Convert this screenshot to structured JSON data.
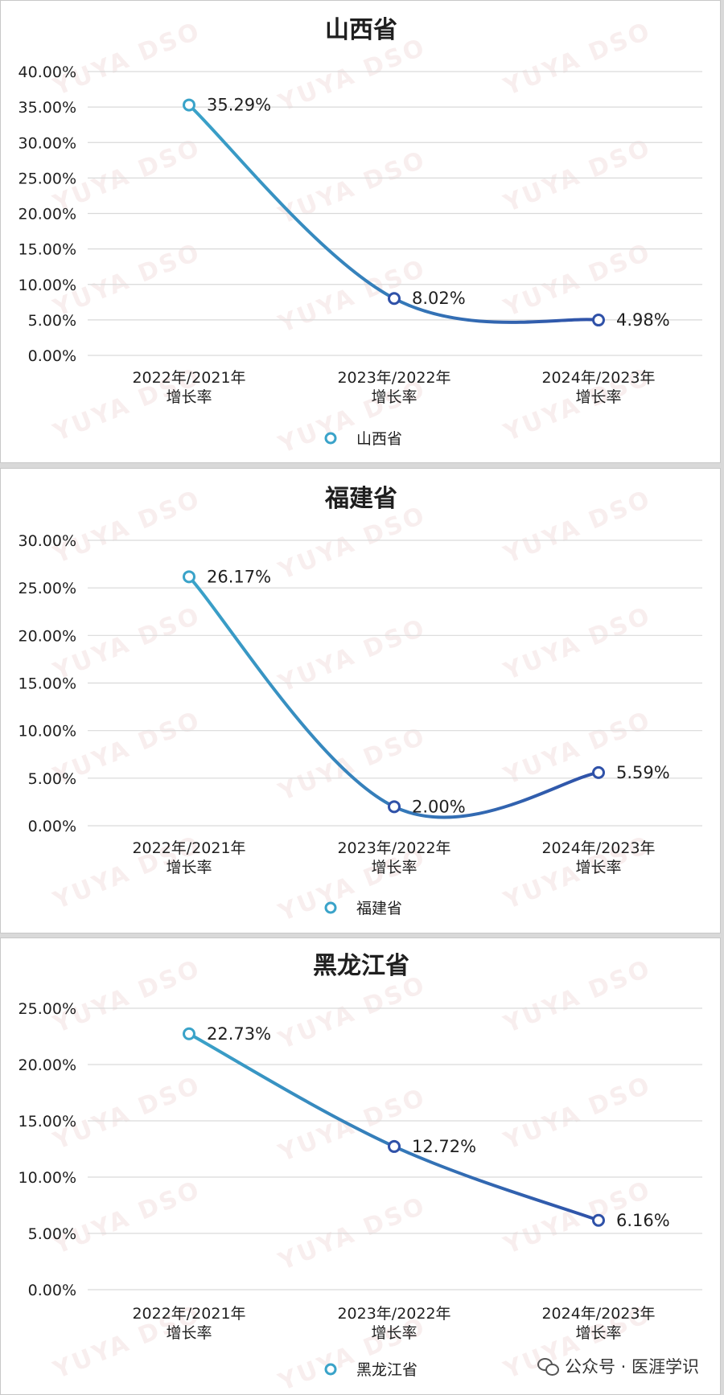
{
  "watermark": "YUYA DSO",
  "footer": {
    "label": "公众号 · 医涯学识",
    "icon": "wechat-icon"
  },
  "colors": {
    "line_start": "#3aa3c9",
    "line_end": "#2f51a8",
    "marker_fill": "#ffffff",
    "grid": "#d9d9d9",
    "text": "#1f1f1f"
  },
  "chart_data": [
    {
      "type": "line",
      "title": "山西省",
      "categories": [
        [
          "2022年/2021年",
          "增长率"
        ],
        [
          "2023年/2022年",
          "增长率"
        ],
        [
          "2024年/2023年",
          "增长率"
        ]
      ],
      "series": [
        {
          "name": "山西省",
          "values": [
            0.3529,
            0.0802,
            0.0498
          ],
          "data_labels": [
            "35.29%",
            "8.02%",
            "4.98%"
          ]
        }
      ],
      "ylim": [
        0,
        0.4
      ],
      "yticks": [
        0,
        0.05,
        0.1,
        0.15,
        0.2,
        0.25,
        0.3,
        0.35,
        0.4
      ],
      "ytick_labels": [
        "0.00%",
        "5.00%",
        "10.00%",
        "15.00%",
        "20.00%",
        "25.00%",
        "30.00%",
        "35.00%",
        "40.00%"
      ],
      "smooth": true,
      "grid": true,
      "legend": "bottom"
    },
    {
      "type": "line",
      "title": "福建省",
      "categories": [
        [
          "2022年/2021年",
          "增长率"
        ],
        [
          "2023年/2022年",
          "增长率"
        ],
        [
          "2024年/2023年",
          "增长率"
        ]
      ],
      "series": [
        {
          "name": "福建省",
          "values": [
            0.2617,
            0.02,
            0.0559
          ],
          "data_labels": [
            "26.17%",
            "2.00%",
            "5.59%"
          ]
        }
      ],
      "ylim": [
        0,
        0.3
      ],
      "yticks": [
        0,
        0.05,
        0.1,
        0.15,
        0.2,
        0.25,
        0.3
      ],
      "ytick_labels": [
        "0.00%",
        "5.00%",
        "10.00%",
        "15.00%",
        "20.00%",
        "25.00%",
        "30.00%"
      ],
      "smooth": true,
      "grid": true,
      "legend": "bottom"
    },
    {
      "type": "line",
      "title": "黑龙江省",
      "categories": [
        [
          "2022年/2021年",
          "增长率"
        ],
        [
          "2023年/2022年",
          "增长率"
        ],
        [
          "2024年/2023年",
          "增长率"
        ]
      ],
      "series": [
        {
          "name": "黑龙江省",
          "values": [
            0.2273,
            0.1272,
            0.0616
          ],
          "data_labels": [
            "22.73%",
            "12.72%",
            "6.16%"
          ]
        }
      ],
      "ylim": [
        0,
        0.25
      ],
      "yticks": [
        0,
        0.05,
        0.1,
        0.15,
        0.2,
        0.25
      ],
      "ytick_labels": [
        "0.00%",
        "5.00%",
        "10.00%",
        "15.00%",
        "20.00%",
        "25.00%"
      ],
      "smooth": true,
      "grid": true,
      "legend": "bottom"
    }
  ]
}
